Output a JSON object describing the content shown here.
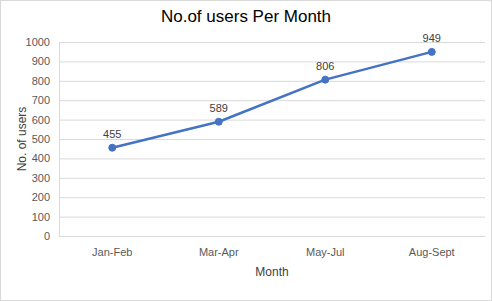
{
  "chart_data": {
    "type": "line",
    "title": "No.of users Per Month",
    "x_label": "Month",
    "y_label": "No. of users",
    "categories": [
      "Jan-Feb",
      "Mar-Apr",
      "May-Jul",
      "Aug-Sept"
    ],
    "values": [
      455,
      589,
      806,
      949
    ],
    "color": "#4472c4",
    "marker": "circle",
    "data_labels": true,
    "ylim": [
      0,
      1000
    ],
    "yticks": [
      0,
      100,
      200,
      300,
      400,
      500,
      600,
      700,
      800,
      900,
      1000
    ],
    "grid": true
  }
}
